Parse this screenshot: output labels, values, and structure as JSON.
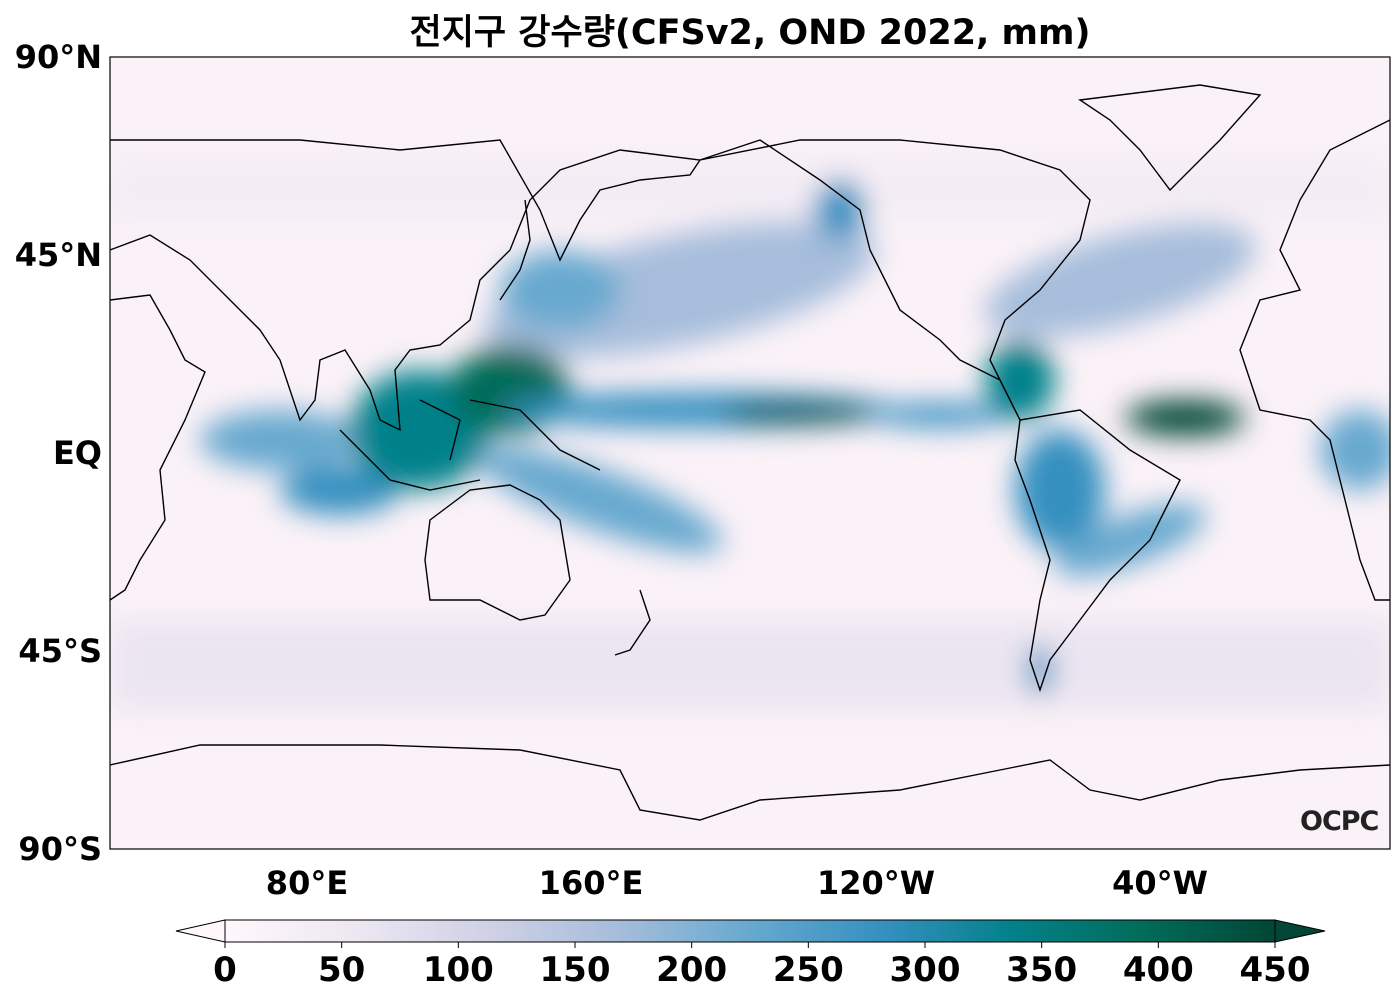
{
  "title": "전지구 강수량(CFSv2, OND 2022, mm)",
  "map": {
    "variable": "precipitation",
    "units": "mm",
    "model": "CFSv2",
    "season": "OND 2022",
    "lat_labels": [
      "90°N",
      "45°N",
      "EQ",
      "45°S",
      "90°S"
    ],
    "lon_labels": [
      "80°E",
      "160°E",
      "120°W",
      "40°W"
    ]
  },
  "colorbar": {
    "ticks": [
      "0",
      "50",
      "100",
      "150",
      "200",
      "250",
      "300",
      "350",
      "400",
      "450"
    ],
    "range": [
      0,
      450
    ],
    "extend": "both",
    "colormap": [
      "#fff7fb",
      "#ece7f2",
      "#d0d1e6",
      "#a6bddb",
      "#67a9cf",
      "#3690c0",
      "#02818a",
      "#016c59",
      "#014636"
    ]
  },
  "logo": "OCPC"
}
